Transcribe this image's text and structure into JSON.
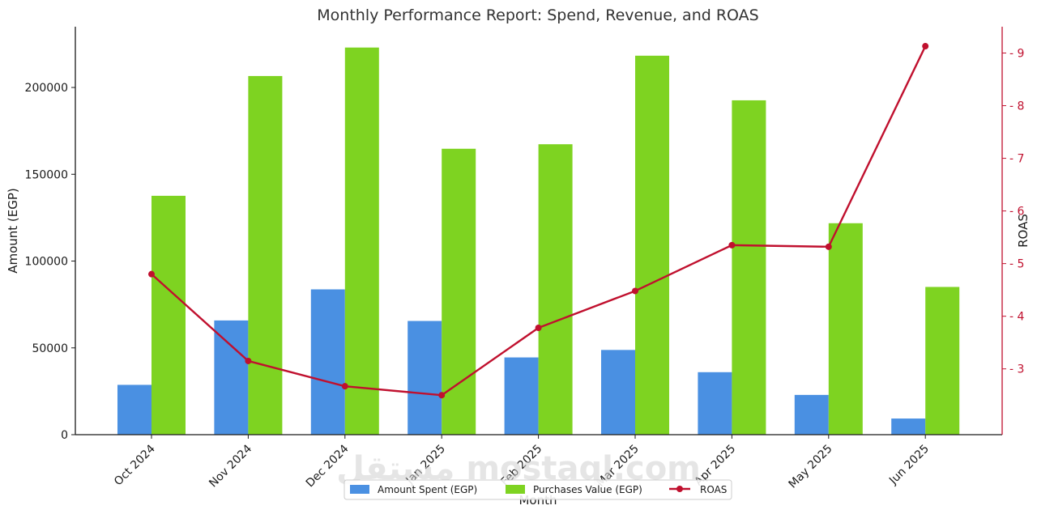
{
  "chart_data": {
    "type": "bar",
    "title": "Monthly Performance Report: Spend, Revenue, and ROAS",
    "xlabel": "Month",
    "ylabel": "Amount (EGP)",
    "y2label": "ROAS",
    "categories": [
      "Oct 2024",
      "Nov 2024",
      "Dec 2024",
      "Jan 2025",
      "Feb 2025",
      "Mar 2025",
      "Apr 2025",
      "May 2025",
      "Jun 2025"
    ],
    "series": [
      {
        "name": "Amount Spent (EGP)",
        "type": "bar",
        "axis": "left",
        "color": "#4a90e2",
        "values": [
          28700,
          65800,
          83700,
          65500,
          44500,
          48800,
          36000,
          22900,
          9300
        ]
      },
      {
        "name": "Purchases Value (EGP)",
        "type": "bar",
        "axis": "left",
        "color": "#7ed321",
        "values": [
          137600,
          206600,
          223000,
          164700,
          167300,
          218300,
          192600,
          121800,
          85100
        ]
      },
      {
        "name": "ROAS",
        "type": "line",
        "axis": "right",
        "color": "#c0102e",
        "values": [
          4.8,
          3.15,
          2.67,
          2.5,
          3.78,
          4.48,
          5.35,
          5.32,
          9.13
        ]
      }
    ],
    "ylim": [
      0,
      235000
    ],
    "yticks": [
      0,
      50000,
      100000,
      150000,
      200000
    ],
    "y2lim": [
      1.75,
      9.5
    ],
    "y2ticks": [
      3,
      4,
      5,
      6,
      7,
      8,
      9
    ],
    "legend_location": "bottom-center",
    "watermark": "مستقل mostaql.com"
  }
}
